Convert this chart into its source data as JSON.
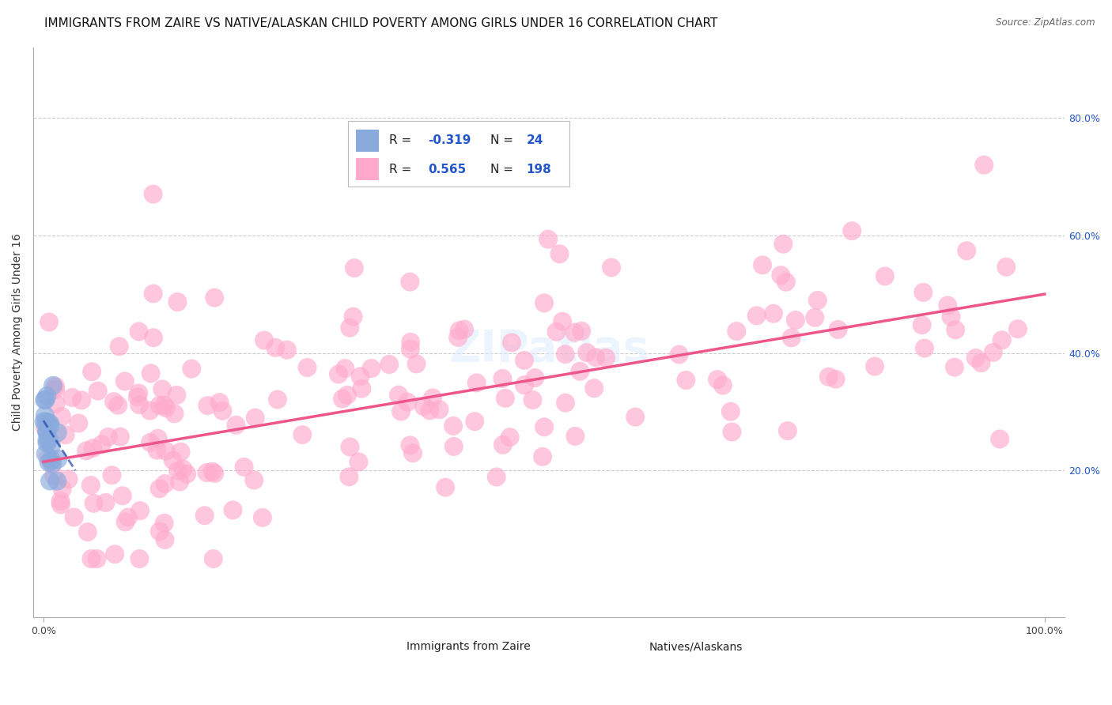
{
  "title": "IMMIGRANTS FROM ZAIRE VS NATIVE/ALASKAN CHILD POVERTY AMONG GIRLS UNDER 16 CORRELATION CHART",
  "source": "Source: ZipAtlas.com",
  "ylabel": "Child Poverty Among Girls Under 16",
  "y_ticks": [
    0.2,
    0.4,
    0.6,
    0.8
  ],
  "y_tick_labels": [
    "20.0%",
    "40.0%",
    "60.0%",
    "80.0%"
  ],
  "xlim": [
    -0.01,
    1.02
  ],
  "ylim": [
    -0.05,
    0.92
  ],
  "blue_color": "#88AADD",
  "pink_color": "#FFAACC",
  "blue_line_color": "#2244AA",
  "pink_line_color": "#EE5588",
  "background_color": "#FFFFFF",
  "grid_color": "#CCCCCC",
  "title_fontsize": 11,
  "watermark_text": "ZIPatlas",
  "legend_r_blue": "-0.319",
  "legend_n_blue": "24",
  "legend_r_pink": "0.565",
  "legend_n_pink": "198",
  "blue_trend_x0": 0.0,
  "blue_trend_x1": 0.032,
  "blue_trend_y0": 0.285,
  "blue_trend_y1": 0.2,
  "pink_trend_x0": 0.0,
  "pink_trend_x1": 1.0,
  "pink_trend_y0": 0.215,
  "pink_trend_y1": 0.5
}
